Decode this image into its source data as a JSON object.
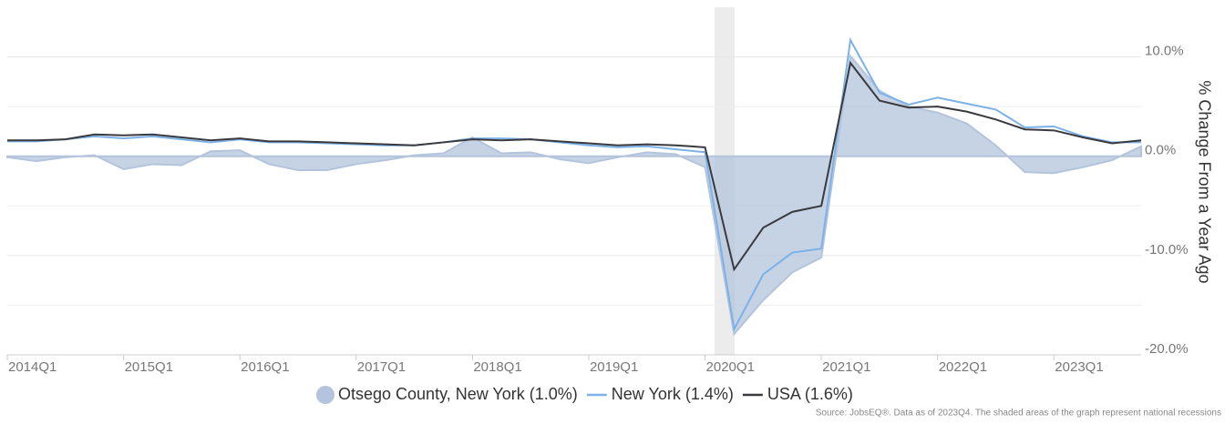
{
  "chart_data": {
    "type": "line",
    "y_axis_label": "% Change From a Year Ago",
    "source": "Source: JobsEQ®. Data as of 2023Q4. The shaded areas of the graph represent national recessions",
    "categories": [
      "2014Q1",
      null,
      null,
      null,
      "2015Q1",
      null,
      null,
      null,
      "2016Q1",
      null,
      null,
      null,
      "2017Q1",
      null,
      null,
      null,
      "2018Q1",
      null,
      null,
      null,
      "2019Q1",
      null,
      null,
      null,
      "2020Q1",
      null,
      null,
      null,
      "2021Q1",
      null,
      null,
      null,
      "2022Q1",
      null,
      null,
      null,
      "2023Q1",
      null,
      null,
      null
    ],
    "ylim": [
      -20,
      15
    ],
    "yticks": [
      {
        "value": 10,
        "label": "10.0%"
      },
      {
        "value": 0,
        "label": "0.0%"
      },
      {
        "value": -10,
        "label": "-10.0%"
      },
      {
        "value": -20,
        "label": "-20.0%"
      }
    ],
    "minor_yticks": [
      5,
      -5,
      -15
    ],
    "grid": true,
    "legend": "bottom",
    "series": [
      {
        "name": "Otsego County, New York (1.0%)",
        "color": "#b3c4dc",
        "style": "area",
        "values": [
          -0.1,
          -0.5,
          -0.1,
          0.1,
          -1.3,
          -0.8,
          -0.9,
          0.5,
          0.6,
          -0.8,
          -1.4,
          -1.4,
          -0.8,
          -0.4,
          0.1,
          0.3,
          1.9,
          0.3,
          0.4,
          -0.3,
          -0.7,
          -0.1,
          0.4,
          0.2,
          -1.1,
          -17.9,
          -14.5,
          -11.7,
          -10.2,
          10.1,
          6.6,
          5.0,
          4.4,
          3.3,
          1.1,
          -1.6,
          -1.7,
          -1.1,
          -0.4,
          1.0
        ]
      },
      {
        "name": "New York (1.4%)",
        "color": "#7cb2e8",
        "style": "line",
        "values": [
          1.5,
          1.5,
          1.7,
          2.0,
          1.8,
          2.0,
          1.7,
          1.4,
          1.7,
          1.4,
          1.4,
          1.3,
          1.2,
          1.1,
          1.1,
          1.4,
          1.8,
          1.8,
          1.7,
          1.4,
          1.1,
          0.9,
          1.0,
          0.7,
          0.4,
          -17.4,
          -11.9,
          -9.7,
          -9.3,
          11.7,
          6.4,
          5.2,
          5.9,
          5.3,
          4.7,
          2.9,
          3.0,
          2.0,
          1.4,
          1.4
        ]
      },
      {
        "name": "USA (1.6%)",
        "color": "#3a3a3e",
        "style": "line",
        "values": [
          1.6,
          1.6,
          1.7,
          2.2,
          2.1,
          2.2,
          1.9,
          1.6,
          1.8,
          1.5,
          1.5,
          1.4,
          1.3,
          1.2,
          1.1,
          1.4,
          1.7,
          1.6,
          1.7,
          1.5,
          1.3,
          1.1,
          1.2,
          1.1,
          0.9,
          -11.4,
          -7.2,
          -5.6,
          -5.0,
          9.4,
          5.6,
          4.9,
          5.0,
          4.5,
          3.7,
          2.7,
          2.6,
          1.9,
          1.3,
          1.6
        ]
      }
    ]
  }
}
